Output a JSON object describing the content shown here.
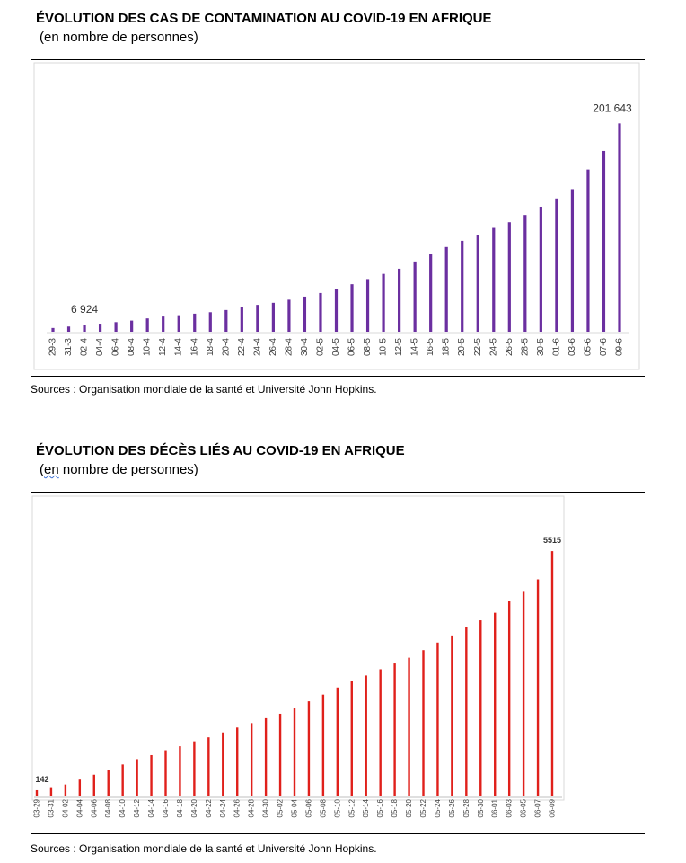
{
  "chart1": {
    "title": "ÉVOLUTION DES CAS DE CONTAMINATION AU COVID-19 EN AFRIQUE",
    "subtitle": "(en nombre de personnes)",
    "source": "Sources : Organisation mondiale de la santé et Université John Hopkins.",
    "color": "#6b2fa0"
  },
  "chart2": {
    "title": "ÉVOLUTION DES DÉCÈS LIÉS AU COVID-19 EN AFRIQUE",
    "subtitle_pre": "(",
    "subtitle_en": "en",
    "subtitle_post": " nombre de personnes)",
    "source": "Sources : Organisation mondiale de la santé et Université John Hopkins.",
    "color": "#e0201b"
  },
  "chart_data": [
    {
      "type": "bar",
      "title": "ÉVOLUTION DES CAS DE CONTAMINATION AU COVID-19 EN AFRIQUE",
      "subtitle": "(en nombre de personnes)",
      "categories": [
        "29-3",
        "31-3",
        "02-4",
        "04-4",
        "06-4",
        "08-4",
        "10-4",
        "12-4",
        "14-4",
        "16-4",
        "18-4",
        "20-4",
        "22-4",
        "24-4",
        "26-4",
        "28-4",
        "30-4",
        "02-5",
        "04-5",
        "06-5",
        "08-5",
        "10-5",
        "12-5",
        "14-5",
        "16-5",
        "18-5",
        "20-5",
        "22-5",
        "24-5",
        "26-5",
        "28-5",
        "30-5",
        "01-6",
        "03-6",
        "05-6",
        "07-6",
        "09-6"
      ],
      "values": [
        3600,
        5000,
        6924,
        7800,
        9300,
        10800,
        12900,
        14700,
        16000,
        17500,
        18900,
        21000,
        24000,
        26000,
        28000,
        31000,
        34000,
        37500,
        41000,
        46000,
        51000,
        56000,
        61000,
        68000,
        75000,
        82000,
        88000,
        94000,
        100500,
        106000,
        113000,
        121000,
        129000,
        138000,
        157000,
        175000,
        201643
      ],
      "data_labels": [
        {
          "category": "02-4",
          "text": "6 924"
        },
        {
          "category": "09-6",
          "text": "201 643"
        }
      ],
      "ylim": [
        0,
        215000
      ],
      "grid": false
    },
    {
      "type": "bar",
      "title": "ÉVOLUTION DES DÉCÈS LIÉS AU COVID-19 EN AFRIQUE",
      "subtitle": "(en nombre de personnes)",
      "categories": [
        "03-29",
        "03-31",
        "04-02",
        "04-04",
        "04-06",
        "04-08",
        "04-10",
        "04-12",
        "04-14",
        "04-16",
        "04-18",
        "04-20",
        "04-22",
        "04-24",
        "04-26",
        "04-28",
        "04-30",
        "05-02",
        "05-04",
        "05-06",
        "05-08",
        "05-10",
        "05-12",
        "05-14",
        "05-16",
        "05-18",
        "05-20",
        "05-22",
        "05-24",
        "05-26",
        "05-28",
        "05-30",
        "06-01",
        "06-03",
        "06-05",
        "06-07",
        "06-09"
      ],
      "values": [
        142,
        190,
        270,
        380,
        490,
        600,
        720,
        840,
        930,
        1040,
        1130,
        1240,
        1330,
        1440,
        1550,
        1650,
        1760,
        1860,
        1980,
        2140,
        2290,
        2450,
        2600,
        2720,
        2860,
        2990,
        3120,
        3290,
        3460,
        3620,
        3800,
        3960,
        4130,
        4390,
        4620,
        4880,
        5515
      ],
      "data_labels": [
        {
          "category": "03-29",
          "text": "142"
        },
        {
          "category": "06-09",
          "text": "5515"
        }
      ],
      "ylim": [
        0,
        5800
      ],
      "grid": false
    }
  ]
}
